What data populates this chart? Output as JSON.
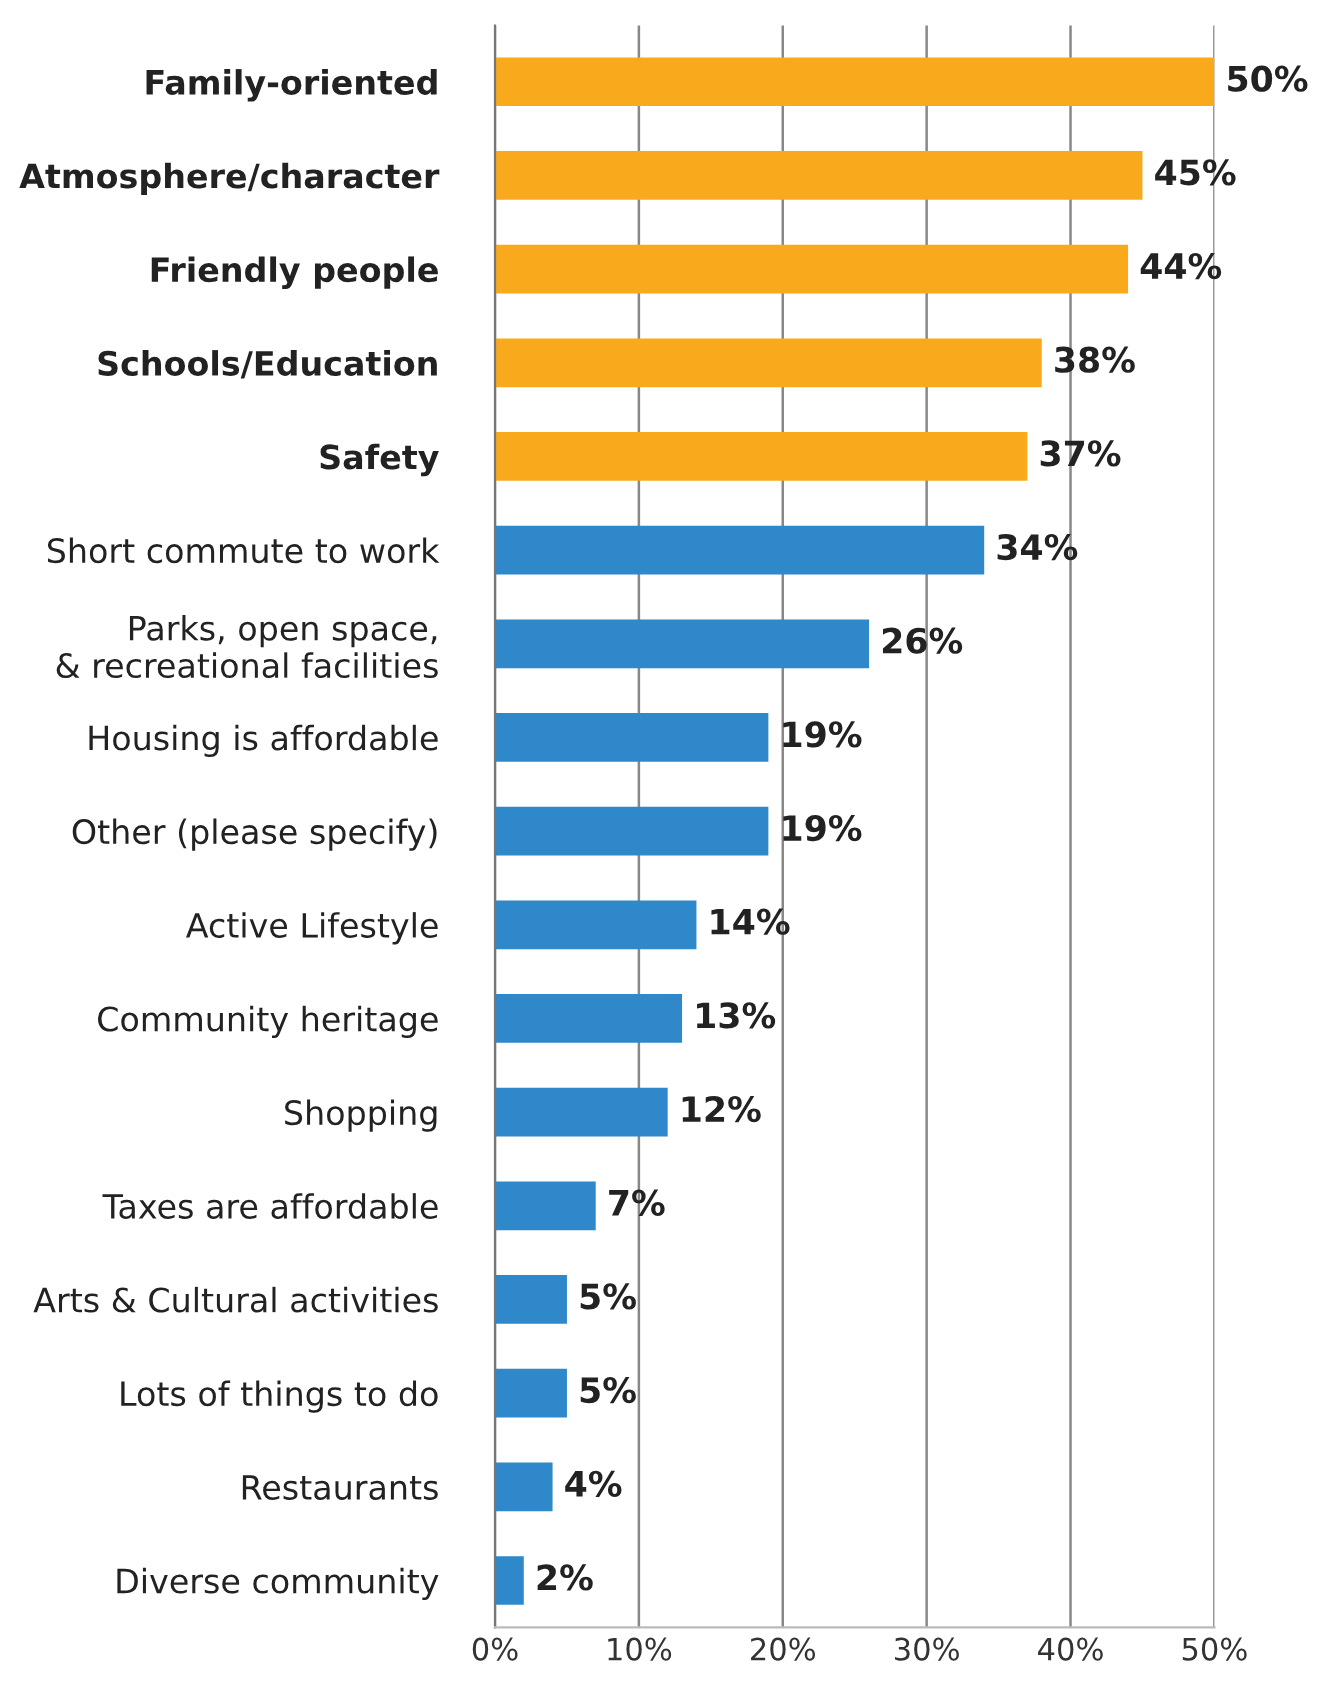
{
  "chart_data": {
    "type": "bar",
    "orientation": "horizontal",
    "categories": [
      "Family-oriented",
      "Atmosphere/character",
      "Friendly people",
      "Schools/Education",
      "Safety",
      "Short commute to work",
      "Parks, open space,\n& recreational facilities",
      "Housing is affordable",
      "Other (please specify)",
      "Active Lifestyle",
      "Community heritage",
      "Shopping",
      "Taxes are affordable",
      "Arts & Cultural activities",
      "Lots of things to do",
      "Restaurants",
      "Diverse community"
    ],
    "values": [
      50,
      45,
      44,
      38,
      37,
      34,
      26,
      19,
      19,
      14,
      13,
      12,
      7,
      5,
      5,
      4,
      2
    ],
    "value_labels": [
      "50%",
      "45%",
      "44%",
      "38%",
      "37%",
      "34%",
      "26%",
      "19%",
      "19%",
      "14%",
      "13%",
      "12%",
      "7%",
      "5%",
      "5%",
      "4%",
      "2%"
    ],
    "colors": [
      "#f9aa1c",
      "#f9aa1c",
      "#f9aa1c",
      "#f9aa1c",
      "#f9aa1c",
      "#2e88c9",
      "#2e88c9",
      "#2e88c9",
      "#2e88c9",
      "#2e88c9",
      "#2e88c9",
      "#2e88c9",
      "#2e88c9",
      "#2e88c9",
      "#2e88c9",
      "#2e88c9",
      "#2e88c9"
    ],
    "xlim": [
      0,
      50
    ],
    "xticks": [
      {
        "value": 0,
        "label": "0%"
      },
      {
        "value": 10,
        "label": "10%"
      },
      {
        "value": 20,
        "label": "20%"
      },
      {
        "value": 30,
        "label": "30%"
      },
      {
        "value": 40,
        "label": "40%"
      },
      {
        "value": 50,
        "label": "50%"
      }
    ],
    "grid": "x",
    "legend": false
  }
}
